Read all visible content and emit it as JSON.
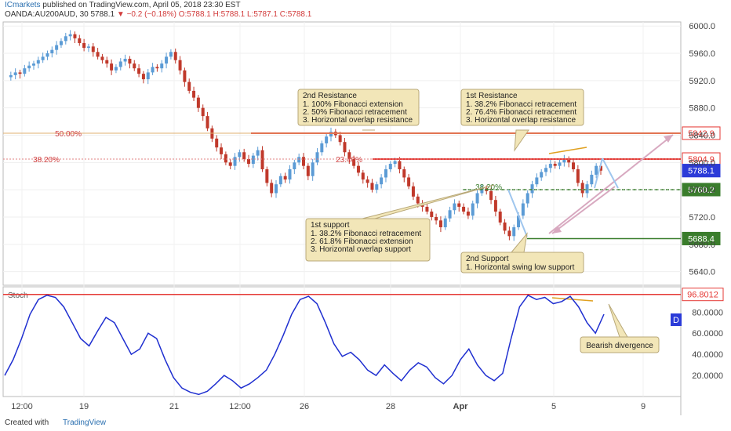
{
  "header": {
    "author": "ICmarkets",
    "published": "published on TradingView.com, April 05, 2018 23:30 EST",
    "symbol": "OANDA:AU200AUD, 30",
    "last": "5788.1",
    "change": "−0.2 (−0.18%)",
    "ohlc_o": "O:5788.1",
    "ohlc_h": "H:5788.1",
    "ohlc_l": "L:5787.1",
    "ohlc_c": "C:5788.1"
  },
  "footer": {
    "created_with": "Created with",
    "brand": "TradingView"
  },
  "colors": {
    "candle_up": "#5b9bd5",
    "candle_down": "#c0392b",
    "resistance": "#e53935",
    "support": "#3a7d2c",
    "stoch": "#1f2fd0",
    "annotation_bg": "#f2e6b8",
    "arrow_pink": "#d8a9c0",
    "arrow_blue": "#9fc6ee"
  },
  "chart_data": [
    {
      "type": "candlestick",
      "y_axis_ticks": [
        "6000.0",
        "5960.0",
        "5920.0",
        "5880.0",
        "5840.0",
        "5800.0",
        "5760.0",
        "5720.0",
        "5680.0",
        "5640.0"
      ],
      "x_axis_ticks": [
        "12:00",
        "19",
        "21",
        "12:00",
        "26",
        "28",
        "Apr",
        "5",
        "9"
      ],
      "ylim": [
        5620,
        6006
      ],
      "price_tags": [
        {
          "label": "5842.9",
          "value": 5842.9,
          "kind": "resistance"
        },
        {
          "label": "5804.9",
          "value": 5804.9,
          "kind": "resistance"
        },
        {
          "label": "5788.1",
          "value": 5788.1,
          "kind": "current"
        },
        {
          "label": "5760.2",
          "value": 5760.2,
          "kind": "support"
        },
        {
          "label": "5688.4",
          "value": 5688.4,
          "kind": "support"
        }
      ],
      "fib_labels": [
        {
          "label": "50.00%",
          "value": 5842.9
        },
        {
          "label": "38.20%",
          "value": 5804.9
        },
        {
          "label": "23.40%",
          "value": 5804.9
        },
        {
          "label": "38.20%",
          "value": 5760.2
        }
      ],
      "close_series": [
        5925,
        5928,
        5932,
        5930,
        5938,
        5942,
        5945,
        5950,
        5955,
        5960,
        5965,
        5972,
        5978,
        5985,
        5988,
        5982,
        5975,
        5968,
        5970,
        5962,
        5955,
        5950,
        5945,
        5935,
        5940,
        5948,
        5952,
        5945,
        5938,
        5930,
        5922,
        5932,
        5940,
        5938,
        5945,
        5955,
        5962,
        5950,
        5935,
        5918,
        5905,
        5895,
        5880,
        5868,
        5850,
        5835,
        5822,
        5812,
        5800,
        5795,
        5808,
        5815,
        5805,
        5798,
        5810,
        5818,
        5790,
        5770,
        5755,
        5768,
        5780,
        5775,
        5790,
        5800,
        5808,
        5795,
        5780,
        5800,
        5815,
        5828,
        5838,
        5845,
        5840,
        5830,
        5815,
        5805,
        5795,
        5785,
        5775,
        5770,
        5760,
        5768,
        5778,
        5790,
        5798,
        5802,
        5790,
        5778,
        5765,
        5750,
        5740,
        5735,
        5728,
        5720,
        5715,
        5705,
        5718,
        5730,
        5740,
        5735,
        5728,
        5722,
        5740,
        5755,
        5762,
        5758,
        5745,
        5728,
        5712,
        5700,
        5692,
        5705,
        5722,
        5740,
        5755,
        5768,
        5778,
        5786,
        5792,
        5798,
        5795,
        5800,
        5805,
        5800,
        5790,
        5770,
        5755,
        5768,
        5782,
        5795,
        5788
      ],
      "annotations": [
        {
          "id": "res2",
          "title": "2nd Resistance",
          "lines": [
            "1. 100% Fibonacci extension",
            "2. 50% Fibonacci retracement",
            "3. Horizontal overlap resistance"
          ]
        },
        {
          "id": "res1",
          "title": "1st Resistance",
          "lines": [
            "1. 38.2% Fibonacci retracement",
            "2. 76.4% Fibonacci retracement",
            "3. Horizontal overlap resistance"
          ]
        },
        {
          "id": "sup1",
          "title": "1st support",
          "lines": [
            "1. 38.2% Fibonacci retracement",
            "2. 61.8% Fibonacci extension",
            "3. Horizontal overlap support"
          ]
        },
        {
          "id": "sup2",
          "title": "2nd Support",
          "lines": [
            "1. Horizontal swing low support"
          ]
        }
      ]
    },
    {
      "type": "line",
      "title": "Stoch",
      "y_axis_ticks": [
        "80.0000",
        "60.0000",
        "40.0000",
        "20.0000"
      ],
      "ylim": [
        0,
        104
      ],
      "level_tag": {
        "label": "96.8012",
        "value": 96.8012
      },
      "d_badge": "D",
      "note": "Bearish divergence",
      "series": [
        {
          "values": [
            20,
            35,
            55,
            78,
            92,
            96,
            94,
            85,
            70,
            55,
            48,
            62,
            75,
            70,
            55,
            40,
            45,
            60,
            55,
            35,
            18,
            8,
            4,
            2,
            5,
            12,
            20,
            15,
            8,
            12,
            18,
            25,
            40,
            58,
            78,
            92,
            95,
            88,
            70,
            50,
            38,
            42,
            35,
            25,
            20,
            30,
            22,
            15,
            25,
            32,
            28,
            18,
            12,
            20,
            35,
            45,
            30,
            20,
            15,
            22,
            55,
            85,
            96,
            92,
            94,
            88,
            90,
            95,
            85,
            70,
            60,
            78
          ]
        }
      ]
    }
  ]
}
